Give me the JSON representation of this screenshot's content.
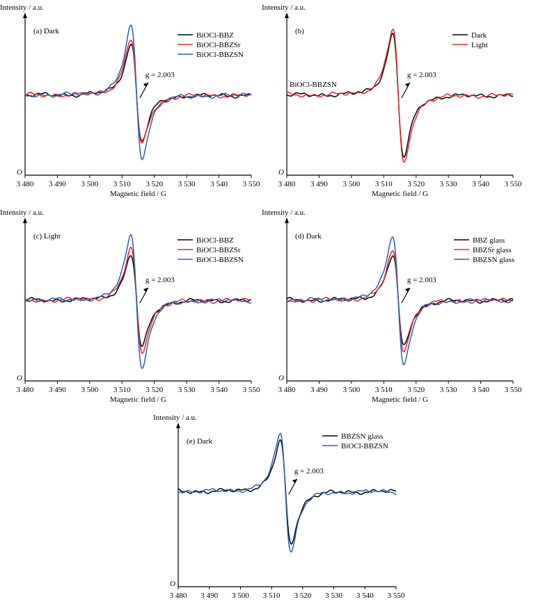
{
  "chart_data": [
    {
      "type": "line",
      "panel_label": "(a) Dark",
      "ylabel": "Intensity / a.u.",
      "xlabel": "Magnetic field / G",
      "x_ticks": [
        "3 480",
        "3 490",
        "3 500",
        "3 510",
        "3 520",
        "3 530",
        "3 540",
        "3 550"
      ],
      "xlim": [
        3480,
        3550
      ],
      "y_origin_label": "O",
      "annotation": "g = 2.003",
      "series": [
        {
          "name": "BiOCl-BBZ",
          "color": "#000000",
          "peak": 0.82,
          "trough": -0.73
        },
        {
          "name": "BiOCl-BBZSr",
          "color": "#e0262b",
          "peak": 0.9,
          "trough": -0.79
        },
        {
          "name": "BiOCl-BBZSN",
          "color": "#2a5db0",
          "peak": 1.1,
          "trough": -1.0
        }
      ]
    },
    {
      "type": "line",
      "panel_label": "(b)",
      "ylabel": "Intensity / a.u.",
      "xlabel": "Magnetic field / G",
      "x_ticks": [
        "3 480",
        "3 490",
        "3 500",
        "3 510",
        "3 520",
        "3 530",
        "3 540",
        "3 550"
      ],
      "xlim": [
        3480,
        3550
      ],
      "y_origin_label": "O",
      "annotation": "g = 2.003",
      "sample_label": "BiOCl-BBZSN",
      "series": [
        {
          "name": "Dark",
          "color": "#000000",
          "peak": 0.97,
          "trough": -0.99
        },
        {
          "name": "Light",
          "color": "#e0262b",
          "peak": 1.05,
          "trough": -1.1
        }
      ]
    },
    {
      "type": "line",
      "panel_label": "(c) Light",
      "ylabel": "Intensity / a.u.",
      "xlabel": "Magnetic field / G",
      "x_ticks": [
        "3 480",
        "3 490",
        "3 500",
        "3 510",
        "3 520",
        "3 530",
        "3 540",
        "3 550"
      ],
      "xlim": [
        3480,
        3550
      ],
      "y_origin_label": "O",
      "annotation": "g = 2.003",
      "series": [
        {
          "name": "BiOCl-BBZ",
          "color": "#000000",
          "peak": 0.72,
          "trough": -0.75
        },
        {
          "name": "BiOCl-BBZSr",
          "color": "#e0262b",
          "peak": 0.82,
          "trough": -0.83
        },
        {
          "name": "BiOCl-BBZSN",
          "color": "#2a5db0",
          "peak": 1.05,
          "trough": -1.08
        }
      ]
    },
    {
      "type": "line",
      "panel_label": "(d) Dark",
      "ylabel": "Intensity / a.u.",
      "xlabel": "Magnetic field / G",
      "x_ticks": [
        "3 480",
        "3 490",
        "3 500",
        "3 510",
        "3 520",
        "3 530",
        "3 540",
        "3 550"
      ],
      "xlim": [
        3480,
        3550
      ],
      "y_origin_label": "O",
      "annotation": "g = 2.003",
      "series": [
        {
          "name": "BBZ glass",
          "color": "#000000",
          "peak": 0.72,
          "trough": -0.75
        },
        {
          "name": "BBZSr glass",
          "color": "#e0262b",
          "peak": 0.78,
          "trough": -0.8
        },
        {
          "name": "BBZSN glass",
          "color": "#2a5db0",
          "peak": 1.05,
          "trough": -1.03
        }
      ]
    },
    {
      "type": "line",
      "panel_label": "(e) Dark",
      "ylabel": "Intensity / a.u.",
      "xlabel": "Magnetic field / G",
      "x_ticks": [
        "3 480",
        "3 490",
        "3 500",
        "3 510",
        "3 520",
        "3 530",
        "3 540",
        "3 550"
      ],
      "xlim": [
        3480,
        3550
      ],
      "y_origin_label": "O",
      "annotation": "g = 2.003",
      "series": [
        {
          "name": "BBZSN glass",
          "color": "#000000",
          "peak": 0.8,
          "trough": -0.84
        },
        {
          "name": "BiOCl-BBZSN",
          "color": "#2a5db0",
          "peak": 0.92,
          "trough": -0.96
        }
      ]
    }
  ]
}
